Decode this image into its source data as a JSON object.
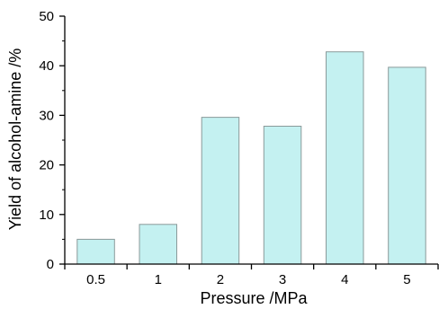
{
  "chart_data": {
    "type": "bar",
    "title": "",
    "xlabel": "Pressure /MPa",
    "ylabel": "Yield of alcohol-amine /%",
    "categories": [
      "0.5",
      "1",
      "2",
      "3",
      "4",
      "5"
    ],
    "values": [
      5.0,
      8.0,
      29.6,
      27.8,
      42.8,
      39.7
    ],
    "ylim": [
      0,
      50
    ],
    "yticks": [
      "0",
      "10",
      "20",
      "30",
      "40",
      "50"
    ],
    "grid": false,
    "legend": "none",
    "colors": {
      "bar_fill": "#c4f1f1",
      "bar_stroke": "#8a9a9a",
      "axis": "#000000"
    }
  }
}
